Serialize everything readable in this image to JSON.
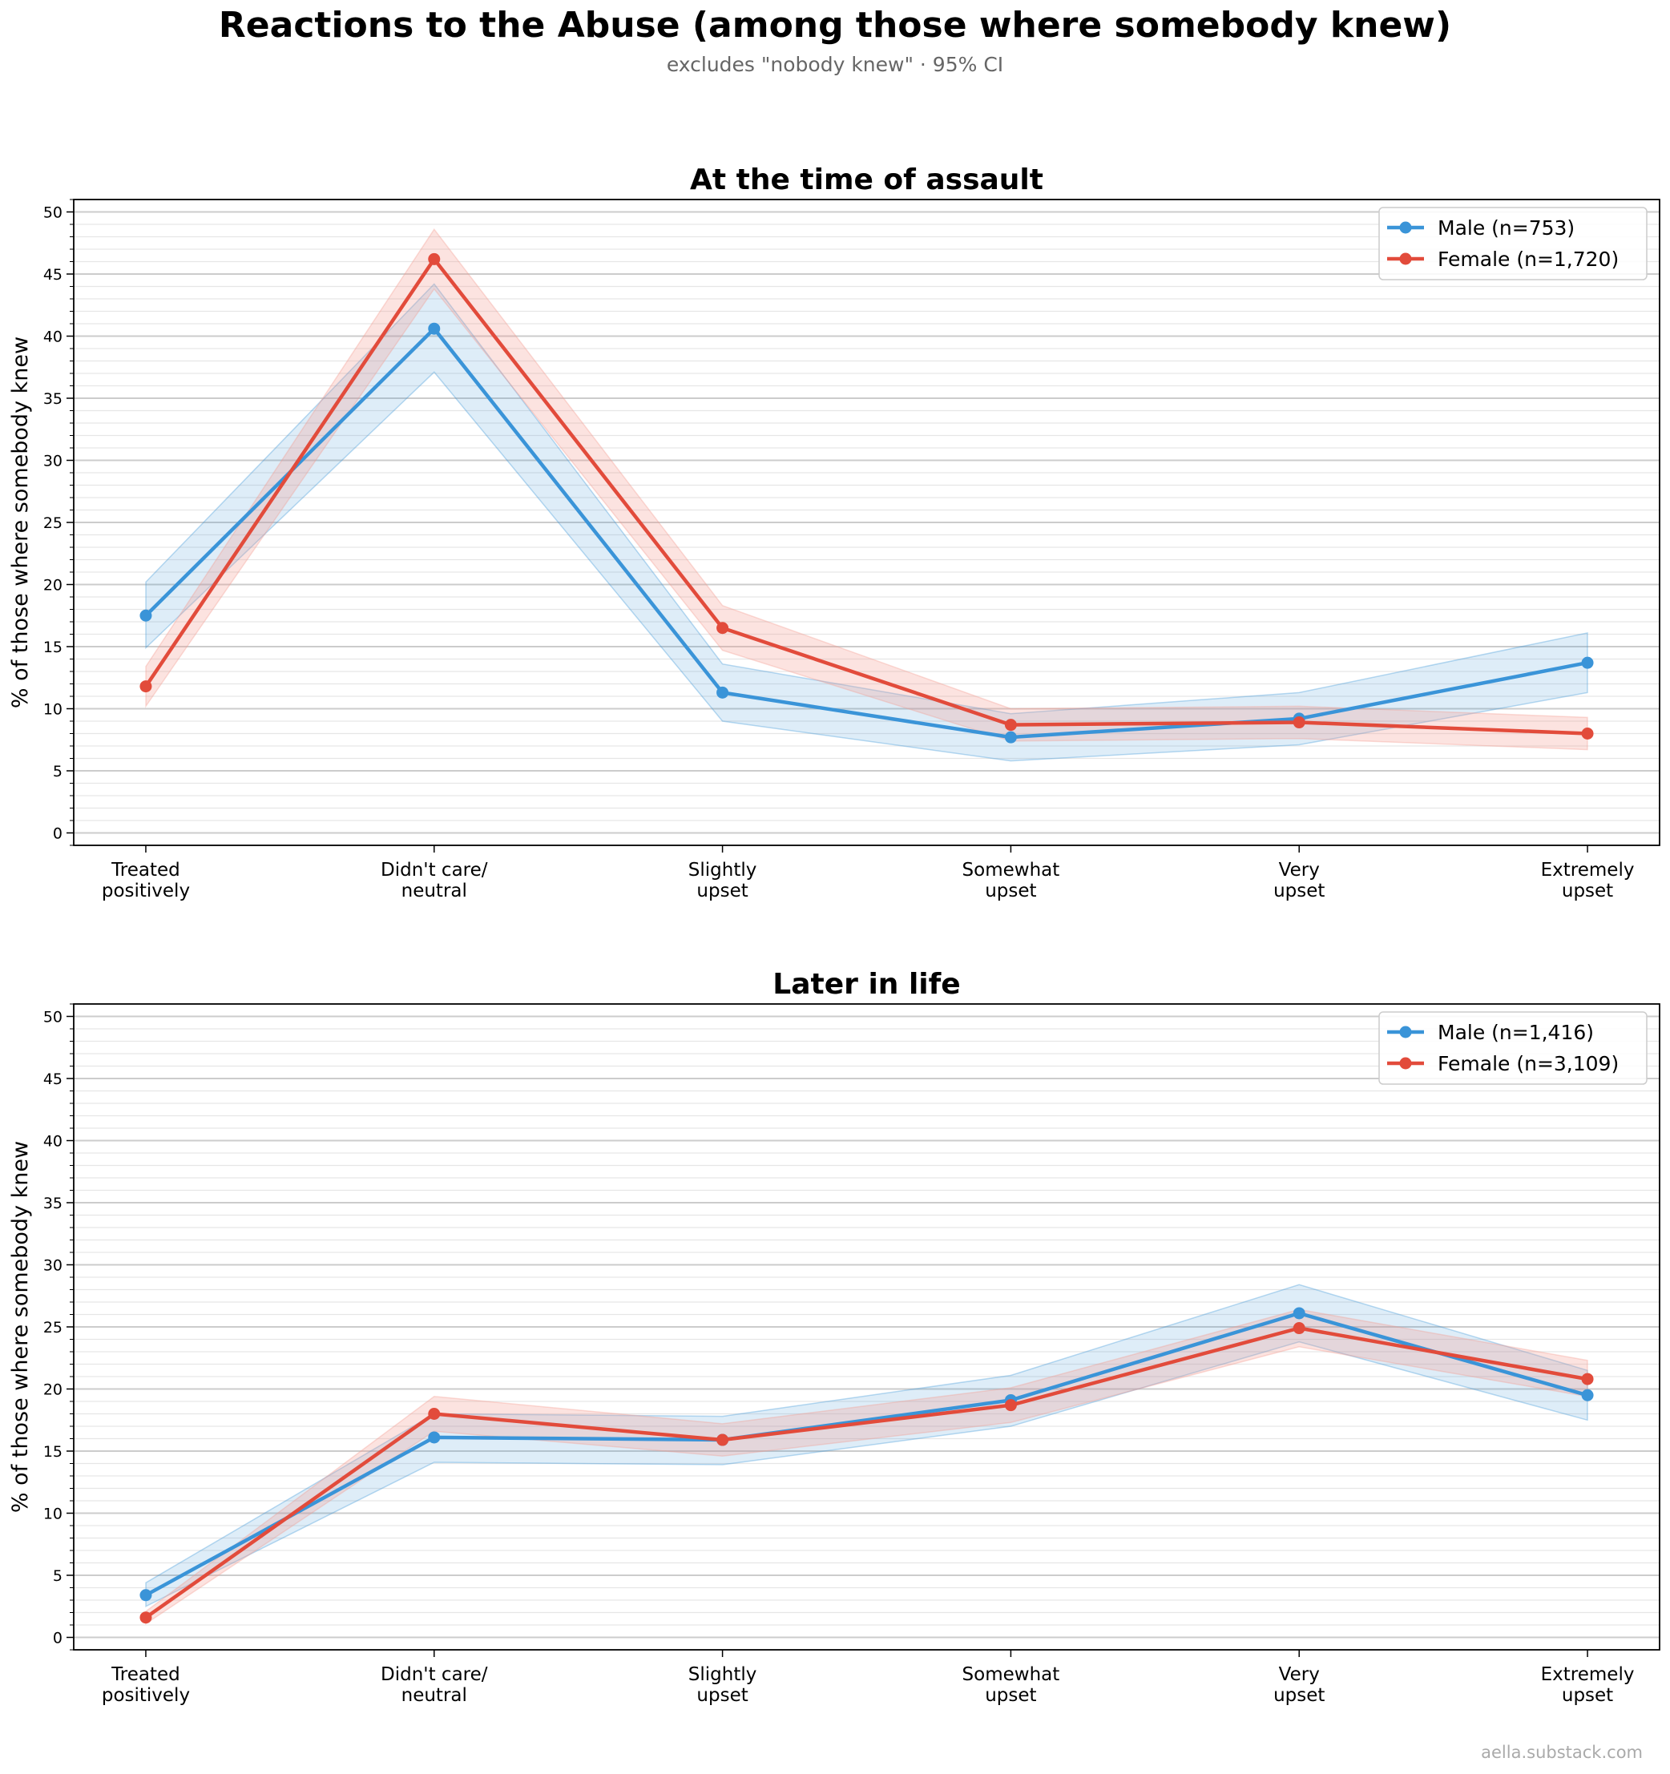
{
  "title": "Reactions to the Abuse (among those where somebody knew)",
  "subtitle": "excludes \"nobody knew\" · 95% CI",
  "watermark": "aella.substack.com",
  "colors": {
    "male": "#3a94d8",
    "female": "#e24b3b",
    "male_fill": "#3a94d8",
    "female_fill": "#f39a8e",
    "grid_major": "#cccccc",
    "grid_minor": "#e6e6e6"
  },
  "chart_data": [
    {
      "type": "line",
      "title": "At the time of assault",
      "xlabel": "",
      "ylabel": "% of those where somebody knew",
      "categories": [
        [
          "Treated",
          "positively"
        ],
        [
          "Didn't care/",
          "neutral"
        ],
        [
          "Slightly",
          "upset"
        ],
        [
          "Somewhat",
          "upset"
        ],
        [
          "Very",
          "upset"
        ],
        [
          "Extremely",
          "upset"
        ]
      ],
      "ylim": [
        -1,
        51
      ],
      "yticks": [
        0,
        5,
        10,
        15,
        20,
        25,
        30,
        35,
        40,
        45,
        50
      ],
      "legend_position": "top-right",
      "series": [
        {
          "name": "Male (n=753)",
          "color_key": "male",
          "values": [
            17.5,
            40.6,
            11.3,
            7.7,
            9.2,
            13.7
          ],
          "ci_low": [
            14.9,
            37.1,
            9.0,
            5.8,
            7.1,
            11.3
          ],
          "ci_high": [
            20.2,
            44.2,
            13.6,
            9.6,
            11.3,
            16.1
          ]
        },
        {
          "name": "Female (n=1,720)",
          "color_key": "female",
          "values": [
            11.8,
            46.2,
            16.5,
            8.7,
            8.9,
            8.0
          ],
          "ci_low": [
            10.2,
            43.8,
            14.7,
            7.4,
            7.6,
            6.7
          ],
          "ci_high": [
            13.4,
            48.6,
            18.3,
            10.0,
            10.2,
            9.3
          ]
        }
      ]
    },
    {
      "type": "line",
      "title": "Later in life",
      "xlabel": "",
      "ylabel": "% of those where somebody knew",
      "categories": [
        [
          "Treated",
          "positively"
        ],
        [
          "Didn't care/",
          "neutral"
        ],
        [
          "Slightly",
          "upset"
        ],
        [
          "Somewhat",
          "upset"
        ],
        [
          "Very",
          "upset"
        ],
        [
          "Extremely",
          "upset"
        ]
      ],
      "ylim": [
        -1,
        51
      ],
      "yticks": [
        0,
        5,
        10,
        15,
        20,
        25,
        30,
        35,
        40,
        45,
        50
      ],
      "legend_position": "top-right",
      "series": [
        {
          "name": "Male (n=1,416)",
          "color_key": "male",
          "values": [
            3.4,
            16.1,
            15.9,
            19.1,
            26.1,
            19.5
          ],
          "ci_low": [
            2.5,
            14.1,
            13.9,
            17.0,
            23.8,
            17.5
          ],
          "ci_high": [
            4.4,
            18.0,
            17.8,
            21.1,
            28.4,
            21.5
          ]
        },
        {
          "name": "Female (n=3,109)",
          "color_key": "female",
          "values": [
            1.6,
            18.0,
            15.9,
            18.7,
            24.9,
            20.8
          ],
          "ci_low": [
            1.1,
            16.6,
            14.6,
            17.3,
            23.4,
            19.4
          ],
          "ci_high": [
            2.1,
            19.4,
            17.2,
            20.1,
            26.4,
            22.3
          ]
        }
      ]
    }
  ]
}
